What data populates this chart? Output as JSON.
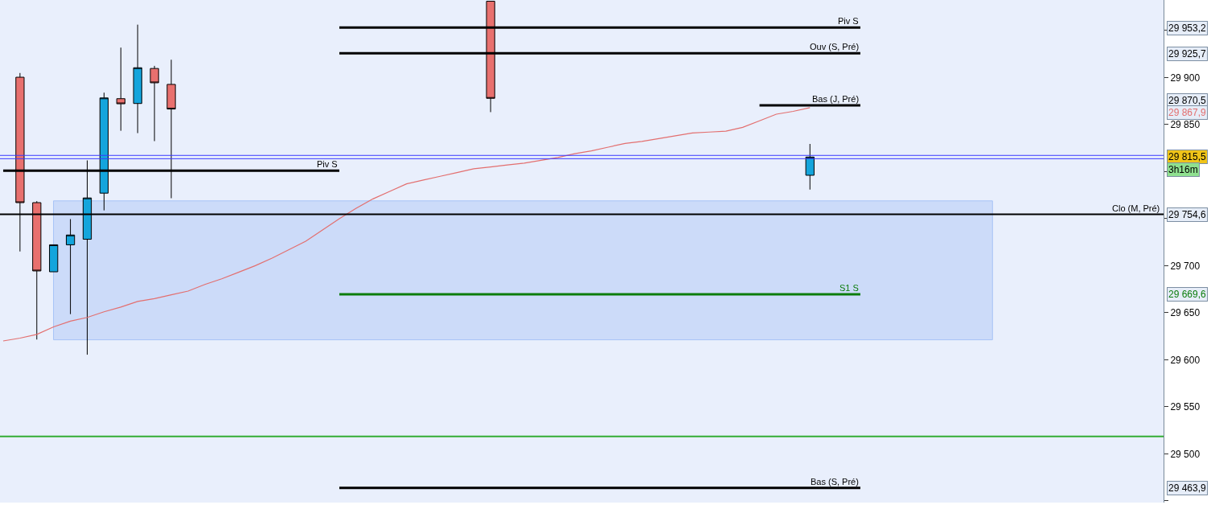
{
  "chart_data": {
    "type": "candlestick",
    "categories": [
      null,
      null,
      null,
      null,
      null,
      null,
      null,
      null,
      null,
      null,
      null,
      null,
      null,
      null,
      null,
      null,
      null,
      null,
      null,
      null,
      null,
      null,
      null,
      null,
      null,
      null,
      null,
      null,
      null,
      null,
      null,
      null,
      null,
      null,
      null,
      null,
      null,
      null,
      null,
      null,
      null,
      null,
      null,
      null,
      null,
      null,
      null,
      null,
      null,
      null,
      null,
      null,
      null,
      null,
      null,
      null,
      null,
      null,
      null,
      null,
      null,
      null,
      null,
      null,
      null,
      null,
      null,
      null,
      null,
      null
    ],
    "series": [
      {
        "ohlc": [
          null,
          [
            29900.3,
            29904.8,
            29715.1,
            29767.0
          ],
          [
            29767.0,
            29768.6,
            29621.5,
            29694.4
          ],
          [
            29693.5,
            29722.2,
            29693.5,
            29722.2
          ],
          [
            29722.2,
            29749.5,
            29648.5,
            29732.6
          ],
          [
            29728.1,
            29811.9,
            29605.4,
            29772.0
          ],
          [
            29777.1,
            29883.9,
            29758.8,
            29878.3
          ],
          [
            29877.5,
            29931.8,
            29843.4,
            29872.1
          ],
          [
            29872.4,
            29956.2,
            29840.9,
            29910.4
          ],
          [
            29909.6,
            29912.4,
            29832.4,
            29894.4
          ],
          [
            29892.7,
            29918.9,
            29771.7,
            29866.5
          ],
          null,
          null,
          null,
          null,
          null,
          null,
          null,
          null,
          null,
          null,
          null,
          null,
          null,
          null,
          null,
          null,
          null,
          null,
          [
            29981.1,
            29981.1,
            29863.2,
            29877.9
          ],
          null,
          null,
          null,
          null,
          null,
          null,
          null,
          null,
          null,
          null,
          null,
          null,
          null,
          null,
          null,
          null,
          null,
          null,
          [
            29796.1,
            29829.4,
            29780.9,
            29815.5
          ],
          null,
          null,
          null,
          null,
          null,
          null,
          null,
          null,
          null,
          null,
          null,
          null,
          null,
          null,
          null,
          null,
          null,
          null,
          null,
          null,
          null
        ],
        "colors": [
          null,
          "#e8706e",
          "#e8706e",
          "#14a5dc",
          "#14a5dc",
          "#14a5dc",
          "#14a5dc",
          "#e8706e",
          "#14a5dc",
          "#e8706e",
          "#e8706e",
          null,
          null,
          null,
          null,
          null,
          null,
          null,
          null,
          null,
          null,
          null,
          null,
          null,
          null,
          null,
          null,
          null,
          null,
          "#e8706e",
          null,
          null,
          null,
          null,
          null,
          null,
          null,
          null,
          null,
          null,
          null,
          null,
          null,
          null,
          null,
          null,
          null,
          null,
          "#14a5dc",
          null,
          null,
          null,
          null,
          null,
          null,
          null,
          null,
          null,
          null,
          null,
          null,
          null,
          null,
          null,
          null,
          null,
          null,
          null,
          null,
          null
        ]
      },
      {
        "type": "line",
        "color": "#e36f6f",
        "values": [
          29620,
          29623,
          29627,
          29635,
          29641,
          29645,
          29651,
          29656,
          29662,
          29665,
          29669,
          29673,
          29680,
          29686,
          29693,
          29700,
          29708,
          29717,
          29726,
          29738,
          29750,
          29761,
          29771,
          29779,
          29787,
          29791,
          29795,
          29799,
          29803,
          29805,
          29807,
          29809,
          29812,
          29815,
          29819,
          29822,
          29826,
          29830,
          29832,
          29835,
          29838,
          29841,
          29842,
          29843,
          29847,
          29854,
          29861,
          29864,
          29867.9,
          null,
          null,
          null,
          null,
          null,
          null,
          null,
          null,
          null,
          null,
          null,
          null,
          null,
          null,
          null,
          null,
          null,
          null,
          null,
          null,
          null
        ]
      },
      {
        "type": "line",
        "name": "Piv S",
        "color": "#000000",
        "values": [
          29801,
          29801,
          29801,
          29801,
          29801,
          29801,
          29801,
          29801,
          29801,
          29801,
          29801,
          29801,
          29801,
          29801,
          29801,
          29801,
          29801,
          29801,
          29801,
          29801,
          29801,
          null,
          null,
          null,
          null,
          null,
          null,
          null,
          null,
          null,
          null,
          null,
          null,
          null,
          null,
          null,
          null,
          null,
          null,
          null,
          null,
          null,
          null,
          null,
          null,
          null,
          null,
          null,
          null,
          null,
          null,
          null,
          null,
          null,
          null,
          null,
          null,
          null,
          null,
          null,
          null,
          null,
          null,
          null,
          null,
          null,
          null,
          null,
          null,
          null
        ]
      },
      {
        "type": "line",
        "name": "Piv S",
        "color": "#000000",
        "values": [
          null,
          null,
          null,
          null,
          null,
          null,
          null,
          null,
          null,
          null,
          null,
          null,
          null,
          null,
          null,
          null,
          null,
          null,
          null,
          null,
          29953.2,
          29953.2,
          29953.2,
          29953.2,
          29953.2,
          29953.2,
          29953.2,
          29953.2,
          29953.2,
          29953.2,
          29953.2,
          29953.2,
          29953.2,
          29953.2,
          29953.2,
          29953.2,
          29953.2,
          29953.2,
          29953.2,
          29953.2,
          29953.2,
          29953.2,
          29953.2,
          29953.2,
          29953.2,
          29953.2,
          29953.2,
          29953.2,
          29953.2,
          29953.2,
          29953.2,
          29953.2,
          null,
          null,
          null,
          null,
          null,
          null,
          null,
          null,
          null,
          null,
          null,
          null,
          null,
          null,
          null,
          null,
          null,
          null
        ]
      },
      {
        "type": "line",
        "name": "Ouv (S, Pré)",
        "color": "#000000",
        "values": [
          null,
          null,
          null,
          null,
          null,
          null,
          null,
          null,
          null,
          null,
          null,
          null,
          null,
          null,
          null,
          null,
          null,
          null,
          null,
          null,
          29925.7,
          29925.7,
          29925.7,
          29925.7,
          29925.7,
          29925.7,
          29925.7,
          29925.7,
          29925.7,
          29925.7,
          29925.7,
          29925.7,
          29925.7,
          29925.7,
          29925.7,
          29925.7,
          29925.7,
          29925.7,
          29925.7,
          29925.7,
          29925.7,
          29925.7,
          29925.7,
          29925.7,
          29925.7,
          29925.7,
          29925.7,
          29925.7,
          29925.7,
          29925.7,
          29925.7,
          29925.7,
          null,
          null,
          null,
          null,
          null,
          null,
          null,
          null,
          null,
          null,
          null,
          null,
          null,
          null,
          null,
          null,
          null,
          null
        ]
      },
      {
        "type": "line",
        "name": "Bas (J, Pré)",
        "color": "#000000",
        "values": [
          null,
          null,
          null,
          null,
          null,
          null,
          null,
          null,
          null,
          null,
          null,
          null,
          null,
          null,
          null,
          null,
          null,
          null,
          null,
          null,
          null,
          null,
          null,
          null,
          null,
          null,
          null,
          null,
          null,
          null,
          null,
          null,
          null,
          null,
          null,
          null,
          null,
          null,
          null,
          null,
          null,
          null,
          null,
          null,
          null,
          29870.5,
          29870.5,
          29870.5,
          29870.5,
          29870.5,
          29870.5,
          29870.5,
          null,
          null,
          null,
          null,
          null,
          null,
          null,
          null,
          null,
          null,
          null,
          null,
          null,
          null,
          null,
          null,
          null,
          null
        ]
      },
      {
        "type": "line",
        "name": "S1 S",
        "color": "#0b7d0b",
        "values": [
          null,
          null,
          null,
          null,
          null,
          null,
          null,
          null,
          null,
          null,
          null,
          null,
          null,
          null,
          null,
          null,
          null,
          null,
          null,
          null,
          29669.6,
          29669.6,
          29669.6,
          29669.6,
          29669.6,
          29669.6,
          29669.6,
          29669.6,
          29669.6,
          29669.6,
          29669.6,
          29669.6,
          29669.6,
          29669.6,
          29669.6,
          29669.6,
          29669.6,
          29669.6,
          29669.6,
          29669.6,
          29669.6,
          29669.6,
          29669.6,
          29669.6,
          29669.6,
          29669.6,
          29669.6,
          29669.6,
          29669.6,
          29669.6,
          29669.6,
          29669.6,
          null,
          null,
          null,
          null,
          null,
          null,
          null,
          null,
          null,
          null,
          null,
          null,
          null,
          null,
          null,
          null,
          null,
          null
        ]
      },
      {
        "type": "line",
        "name": "Bas (S, Pré)",
        "color": "#000000",
        "values": [
          null,
          null,
          null,
          null,
          null,
          null,
          null,
          null,
          null,
          null,
          null,
          null,
          null,
          null,
          null,
          null,
          null,
          null,
          null,
          null,
          29463.9,
          29463.9,
          29463.9,
          29463.9,
          29463.9,
          29463.9,
          29463.9,
          29463.9,
          29463.9,
          29463.9,
          29463.9,
          29463.9,
          29463.9,
          29463.9,
          29463.9,
          29463.9,
          29463.9,
          29463.9,
          29463.9,
          29463.9,
          29463.9,
          29463.9,
          29463.9,
          29463.9,
          29463.9,
          29463.9,
          29463.9,
          29463.9,
          29463.9,
          29463.9,
          29463.9,
          29463.9,
          null,
          null,
          null,
          null,
          null,
          null,
          null,
          null,
          null,
          null,
          null,
          null,
          null,
          null,
          null,
          null,
          null,
          null
        ]
      }
    ],
    "ref_lines": [
      {
        "axis": "y",
        "value": 29754.6,
        "label": "Clo (M, Pré)",
        "color": "#000000"
      },
      {
        "axis": "y",
        "value": 29518.5,
        "color": "#33ad33"
      },
      {
        "axis": "y",
        "value": 29817.2,
        "color": "#3a3aff"
      },
      {
        "axis": "y",
        "value": 29813.7,
        "color": "#3a3aff"
      }
    ],
    "bands": [
      {
        "axis": "y",
        "from": 29621.2,
        "to": 29768.9,
        "color": "#a9c4f7"
      }
    ],
    "annotations": [
      "29 953,2",
      "29 925,7",
      "29 870,5",
      "29 867,9",
      "29 815,5",
      "3h16m",
      "29 754,6",
      "29 669,6",
      "29 463,9"
    ],
    "ylim": [
      29448.2,
      29982.4
    ],
    "yticks": [
      {
        "value": 29450,
        "label": null
      },
      {
        "value": 29500,
        "label": "29 500"
      },
      {
        "value": 29550,
        "label": "29 550"
      },
      {
        "value": 29600,
        "label": "29 600"
      },
      {
        "value": 29650,
        "label": "29 650"
      },
      {
        "value": 29700,
        "label": "29 700"
      },
      {
        "value": 29750,
        "label": null
      },
      {
        "value": 29800,
        "label": null
      },
      {
        "value": 29850,
        "label": "29 850"
      },
      {
        "value": 29900,
        "label": "29 900"
      },
      {
        "value": 29950,
        "label": null
      }
    ],
    "tick_labels": "y",
    "grid": false
  }
}
